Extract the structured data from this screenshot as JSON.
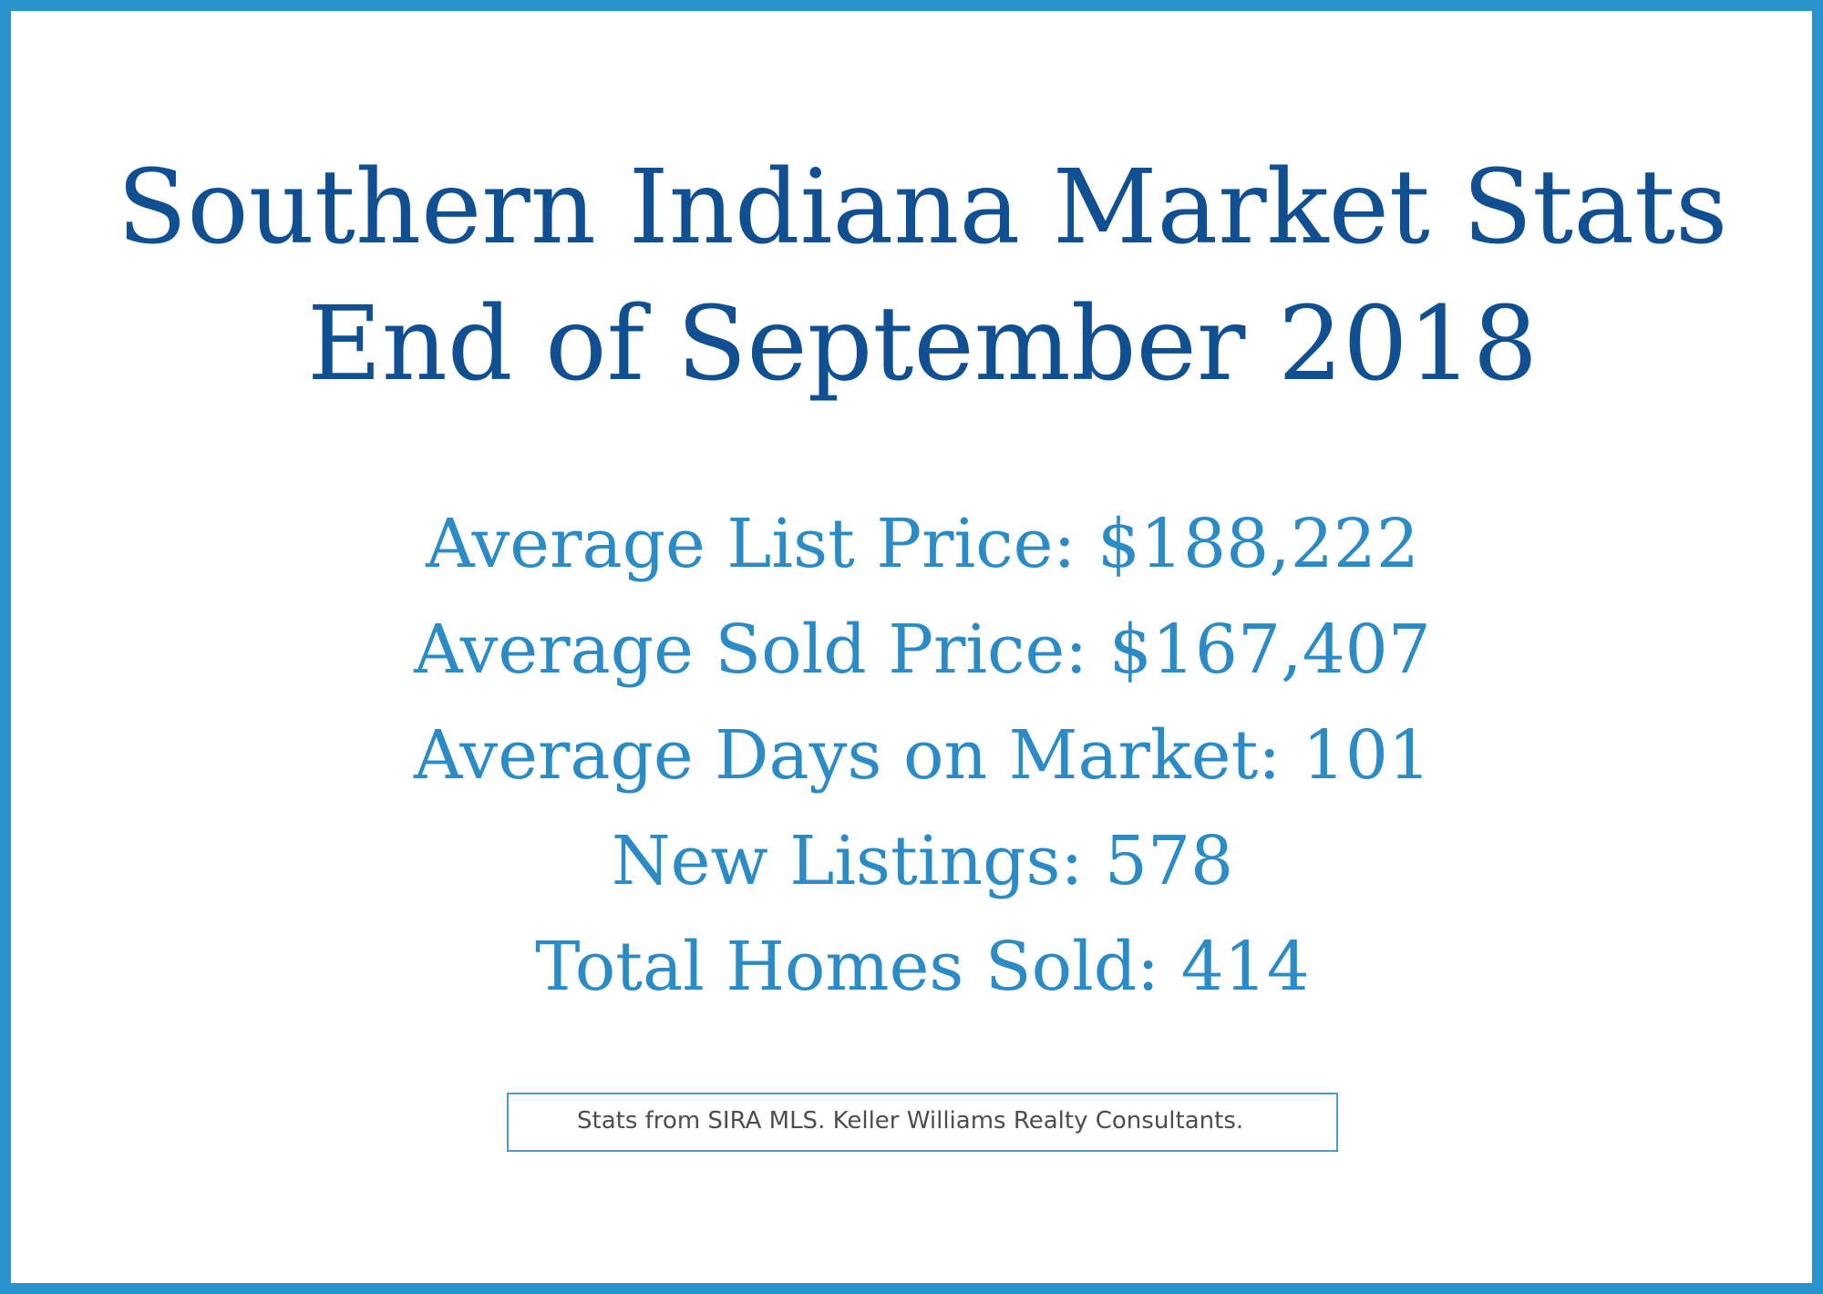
{
  "title": {
    "line1": "Southern Indiana Market Stats",
    "line2": "End of September 2018"
  },
  "stats": [
    {
      "label": "Average List Price",
      "value": "$188,222",
      "text": "Average List Price: $188,222"
    },
    {
      "label": "Average Sold Price",
      "value": "$167,407",
      "text": "Average Sold Price: $167,407"
    },
    {
      "label": "Average Days on Market",
      "value": "101",
      "text": "Average Days on Market: 101"
    },
    {
      "label": "New Listings",
      "value": "578",
      "text": "New Listings: 578"
    },
    {
      "label": "Total Homes Sold",
      "value": "414",
      "text": "Total Homes Sold: 414"
    }
  ],
  "source": {
    "text": "Stats from SIRA MLS. Keller Williams Realty Consultants."
  },
  "colors": {
    "border": "#2a93cd",
    "title": "#104f92",
    "stats": "#2a8bc6",
    "source_text": "#4d4d4d"
  }
}
